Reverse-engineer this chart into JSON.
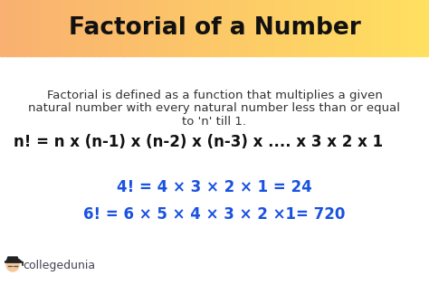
{
  "title": "Factorial of a Number",
  "title_bg_color_left": "#F9B070",
  "title_bg_color_right": "#FFE060",
  "bg_color": "#FFFFFF",
  "title_fontsize": 19,
  "title_color": "#111111",
  "desc_line1": "Factorial is defined as a function that multiplies a given",
  "desc_line2": "natural number with every natural number less than or equal",
  "desc_line3": "to 'n' till 1.",
  "desc_fontsize": 9.5,
  "desc_color": "#333333",
  "formula_text": "n! = n x (n-1) x (n-2) x (n-3) x .... x 3 x 2 x 1",
  "formula_fontsize": 12,
  "formula_color": "#111111",
  "example1": "4! = 4 × 3 × 2 × 1 = 24",
  "example2": "6! = 6 × 5 × 4 × 3 × 2 ×1= 720",
  "example_fontsize": 12,
  "example_color": "#1a52e0",
  "watermark": "collegedunia",
  "watermark_fontsize": 9,
  "watermark_color": "#444455"
}
